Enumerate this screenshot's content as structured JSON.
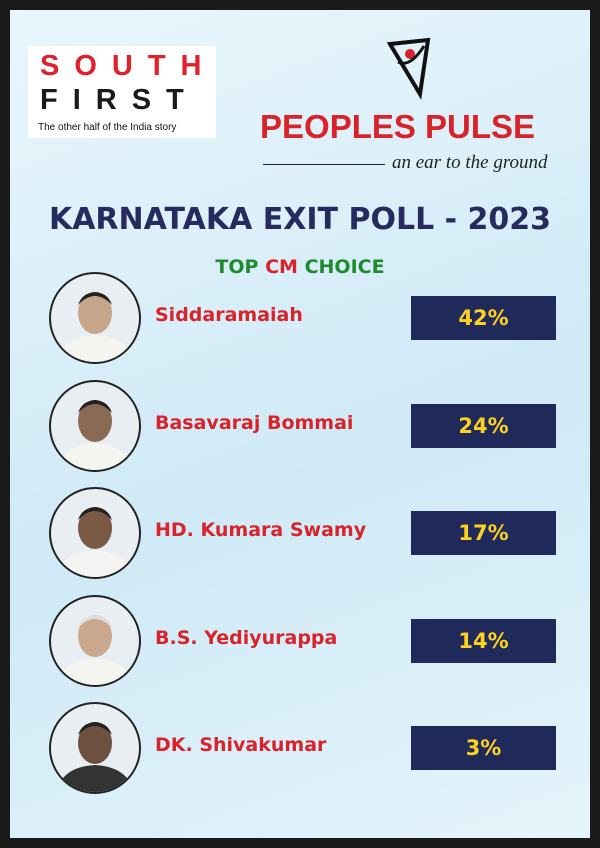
{
  "header": {
    "brand_top": "SOUTH",
    "brand_bottom": "FIRST",
    "brand_tagline": "The other half of the India story",
    "pollster": "PEOPLES PULSE",
    "pollster_tagline": "an ear to the ground"
  },
  "title": "KARNATAKA EXIT POLL - 2023",
  "subtitle": {
    "parts": [
      "TOP",
      "CM",
      "CHOICE"
    ]
  },
  "candidates": [
    {
      "name": "Siddaramaiah",
      "share": "42%"
    },
    {
      "name": "Basavaraj Bommai",
      "share": "24%"
    },
    {
      "name": "HD. Kumara Swamy",
      "share": "17%"
    },
    {
      "name": "B.S. Yediyurappa",
      "share": "14%"
    },
    {
      "name": "DK. Shivakumar",
      "share": "3%"
    }
  ]
}
